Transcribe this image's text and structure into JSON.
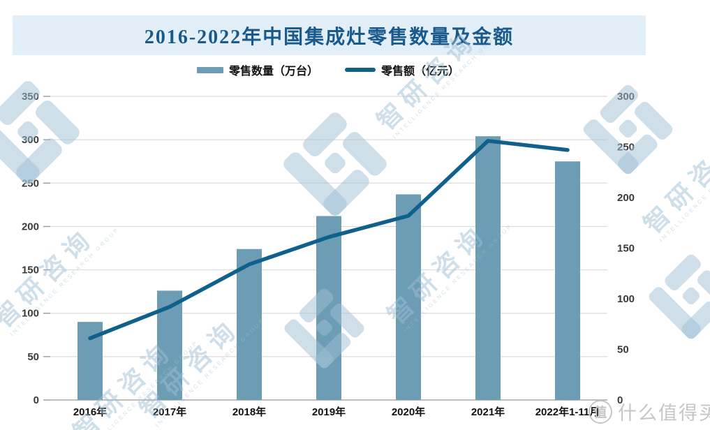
{
  "title_banner": {
    "text": "2016-2022年中国集成灶零售数量及金额"
  },
  "legend": {
    "items": [
      {
        "label": "零售数量（万台）",
        "type": "bar",
        "color": "#6d9cb5"
      },
      {
        "label": "零售额（亿元）",
        "type": "line",
        "color": "#0f618c"
      }
    ]
  },
  "chart_data": {
    "type": "bar",
    "title": "2016-2022年中国集成灶零售数量及金额",
    "categories": [
      "2016年",
      "2017年",
      "2018年",
      "2019年",
      "2020年",
      "2021年",
      "2022年1-11月"
    ],
    "series": [
      {
        "name": "零售数量（万台）",
        "type": "bar",
        "axis": "left",
        "color": "#6d9cb5",
        "values": [
          90,
          126,
          174,
          212,
          237,
          304,
          275
        ]
      },
      {
        "name": "零售额（亿元）",
        "type": "line",
        "axis": "right",
        "color": "#0f618c",
        "values": [
          61,
          92,
          134,
          161,
          182,
          256,
          247
        ]
      }
    ],
    "left_axis": {
      "min": 0,
      "max": 350,
      "step": 50
    },
    "right_axis": {
      "min": 0,
      "max": 300,
      "step": 50
    },
    "grid": true,
    "legend_position": "top"
  },
  "colors": {
    "banner_bg": "#e2eff9",
    "title_text": "#19598c",
    "bar": "#6d9cb5",
    "line": "#0f618c",
    "gridline": "#dcdcdc",
    "axis_line": "#a8a8a8",
    "watermark": "rgba(158,191,213,0.5)"
  },
  "watermarks": {
    "brand": "智研咨询",
    "brand_sub": "INTELLIGENCE RESEARCH GROUP",
    "smzdm_badge": "值",
    "smzdm_text": "什么值得买"
  }
}
